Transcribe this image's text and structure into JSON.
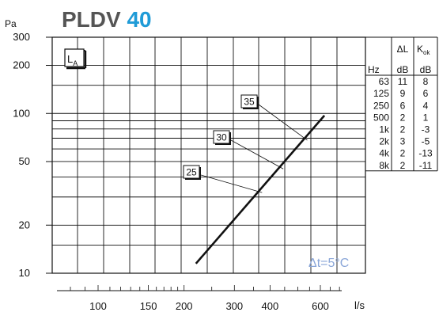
{
  "chart_data": {
    "type": "line",
    "title": {
      "text": "PLDV",
      "size": "40"
    },
    "ylabel": "Pa",
    "xlabel": "l/s",
    "y_scale": "log",
    "x_scale": "log",
    "ylim": [
      10,
      300
    ],
    "xlim": [
      60,
      800
    ],
    "y_ticks": [
      {
        "value": 300,
        "label": "300"
      },
      {
        "value": 200,
        "label": "200"
      },
      {
        "value": 100,
        "label": "100"
      },
      {
        "value": 50,
        "label": "50"
      },
      {
        "value": 20,
        "label": "20"
      },
      {
        "value": 10,
        "label": "10"
      }
    ],
    "x_ticks": [
      {
        "value": 100,
        "label": "100"
      },
      {
        "value": 150,
        "label": "150"
      },
      {
        "value": 200,
        "label": "200"
      },
      {
        "value": 300,
        "label": "300"
      },
      {
        "value": 400,
        "label": "400"
      },
      {
        "value": 600,
        "label": "600"
      }
    ],
    "series": [
      {
        "values_x": [
          220,
          620
        ],
        "values_y": [
          11.5,
          97
        ]
      }
    ],
    "sound_levels": [
      {
        "label": "35",
        "x": 540,
        "y": 68
      },
      {
        "label": "30",
        "x": 445,
        "y": 45
      },
      {
        "label": "25",
        "x": 375,
        "y": 32
      }
    ],
    "la_label": "L",
    "la_sub": "A",
    "annotation": "Δt=5°C",
    "table": {
      "header_top": [
        "",
        "ΔL",
        "K"
      ],
      "k_sub": "ok",
      "header_units": [
        "Hz",
        "dB",
        "dB"
      ],
      "rows": [
        [
          "63",
          "11",
          "8"
        ],
        [
          "125",
          "9",
          "6"
        ],
        [
          "250",
          "6",
          "4"
        ],
        [
          "500",
          "2",
          "1"
        ],
        [
          "1k",
          "2",
          "-3"
        ],
        [
          "2k",
          "3",
          "-5"
        ],
        [
          "4k",
          "2",
          "-13"
        ],
        [
          "8k",
          "2",
          "-11"
        ]
      ]
    },
    "colors": {
      "title": "#555555",
      "size": "#1f9bd7",
      "annotation": "#8aa6d8",
      "grid": "#111111"
    }
  }
}
